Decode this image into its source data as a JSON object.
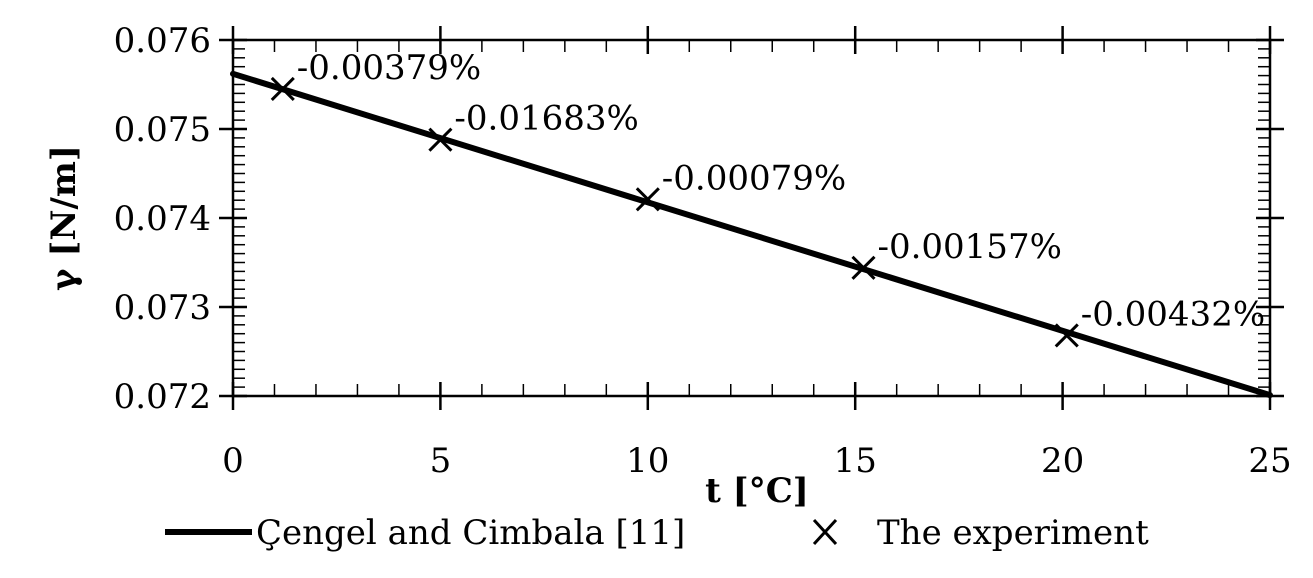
{
  "chart_data": {
    "type": "line",
    "xlabel": "t [°C]",
    "ylabel": "γ [N/m]",
    "xlim": [
      0,
      25
    ],
    "ylim": [
      0.072,
      0.076
    ],
    "x_ticks": [
      0,
      5,
      10,
      15,
      20,
      25
    ],
    "y_ticks": [
      0.072,
      0.073,
      0.074,
      0.075,
      0.076
    ],
    "x_tick_labels": [
      "0",
      "5",
      "10",
      "15",
      "20",
      "25"
    ],
    "y_tick_labels": [
      "0.072",
      "0.073",
      "0.074",
      "0.075",
      "0.076"
    ],
    "grid": false,
    "legend_position": "bottom",
    "series": [
      {
        "name": "Çengel and Cimbala [11]",
        "style": "line",
        "color": "#000000",
        "x": [
          0,
          25
        ],
        "y": [
          0.07562,
          0.07201
        ]
      },
      {
        "name": "The experiment",
        "style": "marker-x",
        "color": "#000000",
        "x": [
          1.2,
          5.0,
          10.0,
          15.2,
          20.1
        ],
        "y": [
          0.07545,
          0.07488,
          0.07421,
          0.07344,
          0.07268
        ],
        "labels": [
          "-0.00379%",
          "-0.01683%",
          "-0.00079%",
          "-0.00157%",
          "-0.00432%"
        ]
      }
    ]
  }
}
